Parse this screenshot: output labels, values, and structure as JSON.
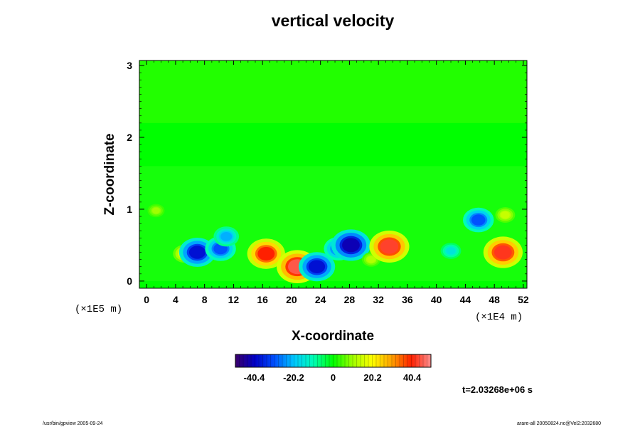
{
  "chart_data": {
    "type": "heatmap",
    "title": "vertical velocity",
    "xlabel": "X-coordinate",
    "ylabel": "Z-coordinate",
    "x_unit": "(×1E4 m)",
    "y_unit": "(×1E5 m)",
    "x_ticks": [
      "0",
      "4",
      "8",
      "12",
      "16",
      "20",
      "24",
      "28",
      "32",
      "36",
      "40",
      "44",
      "48",
      "52"
    ],
    "y_ticks": [
      "0",
      "1",
      "2",
      "3"
    ],
    "xlim": [
      -1,
      52.5
    ],
    "ylim": [
      -0.1,
      3.07
    ],
    "colorbar": {
      "ticks": [
        "-40.4",
        "-20.2",
        "0",
        "20.2",
        "40.4"
      ],
      "range": [
        -50,
        50
      ],
      "colors": [
        "#3a006a",
        "#0000c8",
        "#0050ff",
        "#00c8ff",
        "#00ffb4",
        "#00ff00",
        "#a0ff00",
        "#ffff00",
        "#ffa000",
        "#ff2000",
        "#ff9090"
      ]
    },
    "features": [
      {
        "x": 1.3,
        "z": 0.98,
        "w": 10
      },
      {
        "x": 5.2,
        "z": 0.38,
        "w": 18
      },
      {
        "x": 7.0,
        "z": 0.4,
        "w": -38
      },
      {
        "x": 10.2,
        "z": 0.45,
        "w": -30
      },
      {
        "x": 11.0,
        "z": 0.62,
        "w": -22
      },
      {
        "x": 16.5,
        "z": 0.38,
        "w": 40
      },
      {
        "x": 20.8,
        "z": 0.2,
        "w": 45
      },
      {
        "x": 23.5,
        "z": 0.2,
        "w": -38
      },
      {
        "x": 26.5,
        "z": 0.45,
        "w": -28
      },
      {
        "x": 28.2,
        "z": 0.5,
        "w": -42
      },
      {
        "x": 31.0,
        "z": 0.3,
        "w": 12
      },
      {
        "x": 33.5,
        "z": 0.48,
        "w": 43
      },
      {
        "x": 42.0,
        "z": 0.42,
        "w": -15
      },
      {
        "x": 45.8,
        "z": 0.85,
        "w": -30
      },
      {
        "x": 49.2,
        "z": 0.4,
        "w": 42
      },
      {
        "x": 49.5,
        "z": 0.92,
        "w": 14
      }
    ]
  },
  "time_label": "t=2.03268e+06 s",
  "footer_left": "/usr/bin/gpview 2005-09-24",
  "footer_right": "arare-all 20050824.nc@Vel2:2032680"
}
